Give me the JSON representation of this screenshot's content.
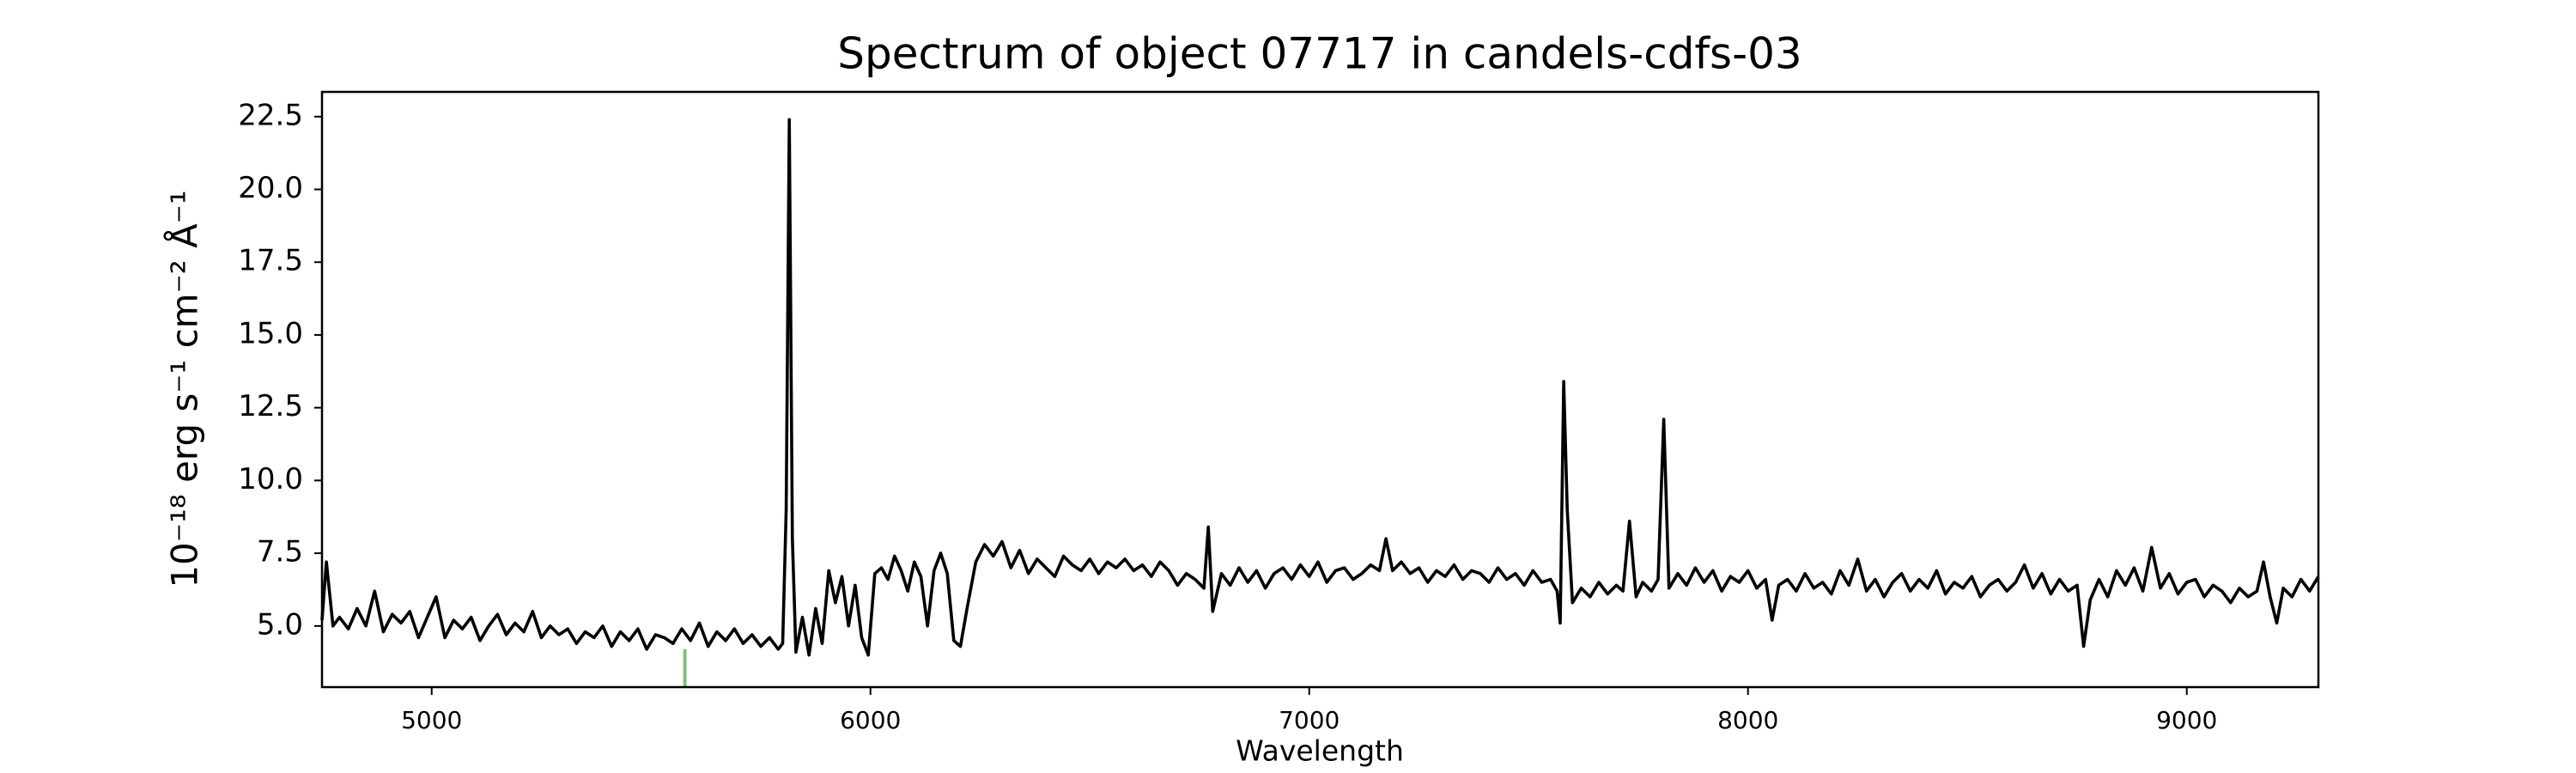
{
  "chart_data": {
    "type": "line",
    "title": "Spectrum of object 07717 in candels-cdfs-03",
    "x_label": "Wavelength",
    "y_label": "10⁻¹⁸ erg s⁻¹ cm⁻² Å⁻¹",
    "xlim": [
      4750,
      9300
    ],
    "ylim": [
      2.9,
      23.35
    ],
    "xticks": [
      5000,
      6000,
      7000,
      8000,
      9000
    ],
    "yticks": [
      {
        "value": 5,
        "label": "5.0"
      },
      7.5,
      {
        "value": 10,
        "label": "10.0"
      },
      12.5,
      {
        "value": 15,
        "label": "15.0"
      },
      17.5,
      {
        "value": 20,
        "label": "20.0"
      },
      22.5
    ],
    "sky_line": {
      "x": 5577,
      "y": 4.2,
      "color": "#7fbf7f"
    },
    "x": [
      4750,
      4760,
      4775,
      4790,
      4810,
      4830,
      4850,
      4870,
      4890,
      4910,
      4930,
      4950,
      4970,
      4990,
      5010,
      5030,
      5050,
      5070,
      5090,
      5110,
      5130,
      5150,
      5170,
      5190,
      5210,
      5230,
      5250,
      5270,
      5290,
      5310,
      5330,
      5350,
      5370,
      5390,
      5410,
      5430,
      5450,
      5470,
      5490,
      5510,
      5530,
      5550,
      5570,
      5590,
      5610,
      5630,
      5650,
      5670,
      5690,
      5710,
      5730,
      5750,
      5770,
      5790,
      5800,
      5808,
      5815,
      5822,
      5830,
      5845,
      5860,
      5875,
      5890,
      5905,
      5920,
      5935,
      5950,
      5965,
      5980,
      5995,
      6010,
      6025,
      6040,
      6055,
      6070,
      6085,
      6100,
      6115,
      6130,
      6145,
      6160,
      6175,
      6190,
      6205,
      6220,
      6240,
      6260,
      6280,
      6300,
      6320,
      6340,
      6360,
      6380,
      6400,
      6420,
      6440,
      6460,
      6480,
      6500,
      6520,
      6540,
      6560,
      6580,
      6600,
      6620,
      6640,
      6660,
      6680,
      6700,
      6720,
      6740,
      6760,
      6770,
      6780,
      6800,
      6820,
      6840,
      6860,
      6880,
      6900,
      6920,
      6940,
      6960,
      6980,
      7000,
      7020,
      7040,
      7060,
      7080,
      7100,
      7120,
      7140,
      7160,
      7175,
      7190,
      7210,
      7230,
      7250,
      7270,
      7290,
      7310,
      7330,
      7350,
      7370,
      7390,
      7410,
      7430,
      7450,
      7470,
      7490,
      7510,
      7530,
      7550,
      7565,
      7572,
      7580,
      7588,
      7600,
      7620,
      7640,
      7660,
      7680,
      7700,
      7715,
      7730,
      7745,
      7760,
      7780,
      7795,
      7808,
      7820,
      7840,
      7860,
      7880,
      7900,
      7920,
      7940,
      7960,
      7980,
      8000,
      8020,
      8040,
      8055,
      8070,
      8090,
      8110,
      8130,
      8150,
      8170,
      8190,
      8210,
      8230,
      8250,
      8270,
      8290,
      8310,
      8330,
      8350,
      8370,
      8390,
      8410,
      8430,
      8450,
      8470,
      8490,
      8510,
      8530,
      8550,
      8570,
      8590,
      8610,
      8630,
      8650,
      8670,
      8690,
      8710,
      8730,
      8750,
      8765,
      8780,
      8800,
      8820,
      8840,
      8860,
      8880,
      8900,
      8920,
      8940,
      8960,
      8980,
      9000,
      9020,
      9040,
      9060,
      9080,
      9100,
      9120,
      9140,
      9160,
      9175,
      9190,
      9205,
      9220,
      9240,
      9260,
      9280,
      9300
    ],
    "series": [
      {
        "color": "#000000",
        "values": [
          5.2,
          7.2,
          5.0,
          5.3,
          4.9,
          5.6,
          5.0,
          6.2,
          4.8,
          5.4,
          5.1,
          5.5,
          4.6,
          5.3,
          6.0,
          4.6,
          5.2,
          4.9,
          5.3,
          4.5,
          5.0,
          5.4,
          4.7,
          5.1,
          4.8,
          5.5,
          4.6,
          5.0,
          4.7,
          4.9,
          4.4,
          4.8,
          4.6,
          5.0,
          4.3,
          4.8,
          4.5,
          4.9,
          4.2,
          4.7,
          4.6,
          4.4,
          4.9,
          4.5,
          5.1,
          4.3,
          4.8,
          4.5,
          4.9,
          4.4,
          4.7,
          4.3,
          4.6,
          4.2,
          4.4,
          9.0,
          22.4,
          8.0,
          4.1,
          5.3,
          4.0,
          5.6,
          4.4,
          6.9,
          5.8,
          6.7,
          5.0,
          6.4,
          4.6,
          4.0,
          6.8,
          7.0,
          6.6,
          7.4,
          6.9,
          6.2,
          7.2,
          6.7,
          5.0,
          6.9,
          7.5,
          6.8,
          4.5,
          4.3,
          5.6,
          7.2,
          7.8,
          7.4,
          7.9,
          7.0,
          7.6,
          6.8,
          7.3,
          7.0,
          6.7,
          7.4,
          7.1,
          6.9,
          7.3,
          6.8,
          7.2,
          7.0,
          7.3,
          6.9,
          7.1,
          6.7,
          7.2,
          6.9,
          6.4,
          6.8,
          6.6,
          6.3,
          8.4,
          5.5,
          6.8,
          6.4,
          7.0,
          6.5,
          6.9,
          6.3,
          6.8,
          7.0,
          6.6,
          7.1,
          6.7,
          7.2,
          6.5,
          6.9,
          7.0,
          6.6,
          6.8,
          7.1,
          6.9,
          8.0,
          6.9,
          7.2,
          6.8,
          7.0,
          6.5,
          6.9,
          6.7,
          7.1,
          6.6,
          6.9,
          6.8,
          6.5,
          7.0,
          6.6,
          6.8,
          6.4,
          6.9,
          6.5,
          6.6,
          6.2,
          5.1,
          13.4,
          9.0,
          5.8,
          6.3,
          6.0,
          6.5,
          6.1,
          6.4,
          6.2,
          8.6,
          6.0,
          6.5,
          6.2,
          6.6,
          12.1,
          6.3,
          6.8,
          6.4,
          7.0,
          6.5,
          6.9,
          6.2,
          6.7,
          6.5,
          6.9,
          6.3,
          6.6,
          5.2,
          6.4,
          6.6,
          6.2,
          6.8,
          6.3,
          6.5,
          6.1,
          6.9,
          6.4,
          7.3,
          6.2,
          6.6,
          6.0,
          6.5,
          6.8,
          6.2,
          6.6,
          6.3,
          6.9,
          6.1,
          6.5,
          6.3,
          6.7,
          6.0,
          6.4,
          6.6,
          6.2,
          6.5,
          7.1,
          6.3,
          6.8,
          6.1,
          6.6,
          6.2,
          6.4,
          4.3,
          5.9,
          6.6,
          6.0,
          6.9,
          6.4,
          7.0,
          6.2,
          7.7,
          6.3,
          6.8,
          6.1,
          6.5,
          6.6,
          6.0,
          6.4,
          6.2,
          5.8,
          6.3,
          6.0,
          6.2,
          7.2,
          6.0,
          5.1,
          6.3,
          6.0,
          6.6,
          6.2,
          6.7
        ]
      }
    ]
  }
}
